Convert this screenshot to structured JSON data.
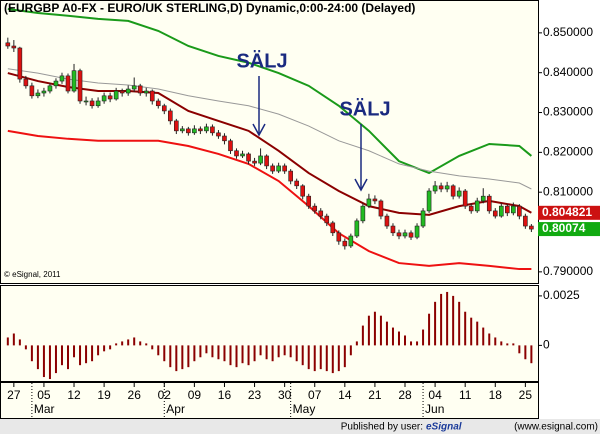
{
  "chart_data": [
    {
      "type": "candlestick",
      "title": "(EURGBP A0-FX - EURO/UK STERLING,D) Dynamic,0:00-24:00 (Delayed)",
      "copyright": "© eSignal, 2011",
      "annotations": [
        "SÄLJ",
        "SÄLJ"
      ],
      "x": [
        -1,
        0,
        1,
        2,
        3,
        4,
        5,
        6,
        7,
        8,
        9,
        10,
        11,
        12,
        13,
        14,
        15,
        16,
        17,
        18,
        19,
        20,
        21,
        22,
        23,
        24,
        25,
        26,
        27,
        28,
        29,
        30,
        31,
        32,
        33,
        34,
        35,
        36,
        37,
        38,
        39,
        40,
        41,
        42,
        43,
        44,
        45,
        46,
        47,
        48,
        49,
        50,
        51,
        52,
        53,
        54,
        55,
        56,
        57,
        58,
        59,
        60,
        61,
        62,
        63,
        64,
        65,
        66,
        67,
        68,
        69,
        70,
        71,
        72,
        73,
        74,
        75,
        76,
        77,
        78,
        79,
        80,
        81,
        82,
        83,
        84,
        85,
        86
      ],
      "open": [
        0.8475,
        0.8467,
        0.8462,
        0.8384,
        0.8367,
        0.8342,
        0.8349,
        0.8354,
        0.8367,
        0.8379,
        0.8392,
        0.8354,
        0.8405,
        0.8329,
        0.8329,
        0.8317,
        0.8329,
        0.8342,
        0.8334,
        0.8354,
        0.8349,
        0.8359,
        0.8367,
        0.8349,
        0.8354,
        0.8329,
        0.8317,
        0.8304,
        0.8279,
        0.8254,
        0.8259,
        0.8249,
        0.8259,
        0.8254,
        0.8264,
        0.8249,
        0.8241,
        0.8229,
        0.8204,
        0.8191,
        0.8196,
        0.8178,
        0.8173,
        0.8191,
        0.8166,
        0.8153,
        0.8166,
        0.8153,
        0.8128,
        0.8116,
        0.809,
        0.8065,
        0.8053,
        0.804,
        0.8023,
        0.7998,
        0.7977,
        0.7965,
        0.799,
        0.8028,
        0.8065,
        0.8083,
        0.8078,
        0.804,
        0.8015,
        0.7998,
        0.799,
        0.7998,
        0.7987,
        0.8015,
        0.8053,
        0.8103,
        0.8116,
        0.8108,
        0.8116,
        0.809,
        0.8103,
        0.8065,
        0.8053,
        0.8078,
        0.809,
        0.8053,
        0.804,
        0.8065,
        0.8048,
        0.8065,
        0.804,
        0.8015
      ],
      "high": [
        0.8488,
        0.8482,
        0.8465,
        0.8392,
        0.8375,
        0.8358,
        0.8362,
        0.8374,
        0.8386,
        0.84,
        0.8398,
        0.8422,
        0.841,
        0.834,
        0.8336,
        0.8338,
        0.835,
        0.835,
        0.8362,
        0.836,
        0.8368,
        0.8388,
        0.8372,
        0.8362,
        0.8358,
        0.8335,
        0.8322,
        0.831,
        0.8284,
        0.8266,
        0.8264,
        0.8268,
        0.8265,
        0.8272,
        0.827,
        0.8256,
        0.8248,
        0.8234,
        0.821,
        0.8204,
        0.82,
        0.8186,
        0.821,
        0.8195,
        0.8172,
        0.8174,
        0.8172,
        0.8158,
        0.8134,
        0.812,
        0.8096,
        0.8072,
        0.806,
        0.8046,
        0.8028,
        0.8004,
        0.7984,
        0.7996,
        0.8034,
        0.8072,
        0.8096,
        0.8092,
        0.8082,
        0.8046,
        0.8022,
        0.8006,
        0.8006,
        0.8004,
        0.8022,
        0.806,
        0.811,
        0.8128,
        0.8124,
        0.8126,
        0.812,
        0.8112,
        0.8108,
        0.8072,
        0.8086,
        0.811,
        0.8095,
        0.806,
        0.8072,
        0.807,
        0.8074,
        0.807,
        0.8046,
        0.802
      ],
      "low": [
        0.846,
        0.8452,
        0.8375,
        0.836,
        0.8335,
        0.8336,
        0.834,
        0.8348,
        0.836,
        0.8372,
        0.8348,
        0.835,
        0.8322,
        0.8318,
        0.831,
        0.8312,
        0.8322,
        0.8326,
        0.833,
        0.834,
        0.8342,
        0.8352,
        0.8342,
        0.834,
        0.832,
        0.831,
        0.8296,
        0.827,
        0.8246,
        0.8248,
        0.8242,
        0.8244,
        0.8246,
        0.8248,
        0.8242,
        0.8234,
        0.822,
        0.8196,
        0.8184,
        0.8186,
        0.817,
        0.8166,
        0.8168,
        0.8158,
        0.8146,
        0.8148,
        0.8146,
        0.812,
        0.8108,
        0.8082,
        0.8058,
        0.8046,
        0.8032,
        0.8015,
        0.799,
        0.7968,
        0.7956,
        0.796,
        0.7985,
        0.8022,
        0.806,
        0.807,
        0.8032,
        0.8008,
        0.799,
        0.7982,
        0.7984,
        0.798,
        0.7982,
        0.801,
        0.8048,
        0.8096,
        0.81,
        0.81,
        0.8082,
        0.8084,
        0.8058,
        0.8046,
        0.8048,
        0.8072,
        0.8046,
        0.8034,
        0.8036,
        0.804,
        0.8042,
        0.8032,
        0.8008,
        0.8
      ],
      "close": [
        0.8467,
        0.8462,
        0.8384,
        0.8367,
        0.8342,
        0.8349,
        0.8354,
        0.8367,
        0.8379,
        0.8392,
        0.8354,
        0.8405,
        0.8329,
        0.8329,
        0.8317,
        0.8329,
        0.8342,
        0.8334,
        0.8354,
        0.8349,
        0.8359,
        0.8367,
        0.8349,
        0.8354,
        0.8329,
        0.8317,
        0.8304,
        0.8279,
        0.8254,
        0.8259,
        0.8249,
        0.8259,
        0.8254,
        0.8264,
        0.8249,
        0.8241,
        0.8229,
        0.8204,
        0.8191,
        0.8196,
        0.8178,
        0.8173,
        0.8191,
        0.8166,
        0.8153,
        0.8166,
        0.8153,
        0.8128,
        0.8116,
        0.809,
        0.8065,
        0.8053,
        0.804,
        0.8023,
        0.7998,
        0.7977,
        0.7965,
        0.799,
        0.8028,
        0.8065,
        0.8083,
        0.8078,
        0.804,
        0.8015,
        0.7998,
        0.799,
        0.7998,
        0.7987,
        0.8015,
        0.8053,
        0.8103,
        0.8116,
        0.8108,
        0.8116,
        0.809,
        0.8103,
        0.8065,
        0.8053,
        0.8078,
        0.809,
        0.8053,
        0.804,
        0.8065,
        0.8048,
        0.8065,
        0.804,
        0.8015,
        0.80074
      ],
      "up_color": "#22bb22",
      "down_color": "#dd1111",
      "series": [
        {
          "color": "#1a9a1a",
          "x": [
            -1,
            4,
            9,
            14,
            19,
            24,
            29,
            34,
            39,
            44,
            49,
            54,
            59,
            64,
            69,
            74,
            79,
            84,
            86
          ],
          "values": [
            0.856,
            0.855,
            0.8543,
            0.8535,
            0.853,
            0.8505,
            0.8467,
            0.8442,
            0.8425,
            0.8399,
            0.8367,
            0.8317,
            0.8254,
            0.8178,
            0.8148,
            0.8191,
            0.8221,
            0.8216,
            0.8191
          ]
        },
        {
          "color": "#8b0000",
          "x": [
            -1,
            4,
            9,
            14,
            19,
            24,
            29,
            34,
            39,
            44,
            49,
            54,
            59,
            64,
            69,
            74,
            79,
            84,
            86
          ],
          "values": [
            0.8399,
            0.8379,
            0.8364,
            0.8354,
            0.8354,
            0.8349,
            0.8304,
            0.8279,
            0.8254,
            0.8204,
            0.8148,
            0.8103,
            0.8065,
            0.8048,
            0.8043,
            0.8065,
            0.8078,
            0.8065,
            0.804821
          ]
        },
        {
          "color": "#ee1111",
          "x": [
            -1,
            4,
            9,
            14,
            19,
            24,
            29,
            34,
            39,
            44,
            49,
            54,
            59,
            64,
            69,
            74,
            79,
            84,
            86
          ],
          "values": [
            0.8254,
            0.8241,
            0.8234,
            0.8229,
            0.8229,
            0.8229,
            0.8216,
            0.8196,
            0.8171,
            0.8128,
            0.8065,
            0.7997,
            0.7952,
            0.7922,
            0.7915,
            0.7922,
            0.7915,
            0.7907,
            0.7907
          ]
        },
        {
          "color": "#999999",
          "x": [
            -1,
            4,
            9,
            14,
            19,
            24,
            29,
            34,
            39,
            44,
            49,
            54,
            59,
            64,
            69,
            74,
            79,
            84,
            86
          ],
          "values": [
            0.841,
            0.8399,
            0.8384,
            0.8374,
            0.8369,
            0.8359,
            0.8342,
            0.8329,
            0.8317,
            0.8296,
            0.8266,
            0.8229,
            0.8204,
            0.8171,
            0.8153,
            0.8141,
            0.8133,
            0.8123,
            0.8108
          ]
        }
      ],
      "xlim": [
        -2.3,
        87.1
      ],
      "ylim": [
        0.7872,
        0.858
      ],
      "yticks": [
        {
          "value": 0.85,
          "label": "0.850000"
        },
        {
          "value": 0.84,
          "label": "0.840000"
        },
        {
          "value": 0.83,
          "label": "0.830000"
        },
        {
          "value": 0.82,
          "label": "0.820000"
        },
        {
          "value": 0.81,
          "label": "0.810000"
        },
        {
          "value": 0.79,
          "label": "0.790000"
        }
      ],
      "xticks": [
        {
          "value": 0,
          "label": "27"
        },
        {
          "value": 5,
          "label": "05"
        },
        {
          "value": 10,
          "label": "12"
        },
        {
          "value": 15,
          "label": "19"
        },
        {
          "value": 20,
          "label": "26"
        },
        {
          "value": 25,
          "label": "02"
        },
        {
          "value": 30,
          "label": "09"
        },
        {
          "value": 35,
          "label": "16"
        },
        {
          "value": 40,
          "label": "23"
        },
        {
          "value": 45,
          "label": "30"
        },
        {
          "value": 50,
          "label": "07"
        },
        {
          "value": 55,
          "label": "14"
        },
        {
          "value": 60,
          "label": "21"
        },
        {
          "value": 65,
          "label": "28"
        },
        {
          "value": 70,
          "label": "04"
        },
        {
          "value": 75,
          "label": "11"
        },
        {
          "value": 80,
          "label": "18"
        },
        {
          "value": 85,
          "label": "25"
        }
      ],
      "months": [
        {
          "value": 3,
          "label": "Mar"
        },
        {
          "value": 25,
          "label": "Apr"
        },
        {
          "value": 46,
          "label": "May"
        },
        {
          "value": 68,
          "label": "Jun"
        }
      ]
    },
    {
      "type": "bar",
      "color": "#8b0000",
      "x": [
        -1,
        0,
        1,
        2,
        3,
        4,
        5,
        6,
        7,
        8,
        9,
        10,
        11,
        12,
        13,
        14,
        15,
        16,
        17,
        18,
        19,
        20,
        21,
        22,
        23,
        24,
        25,
        26,
        27,
        28,
        29,
        30,
        31,
        32,
        33,
        34,
        35,
        36,
        37,
        38,
        39,
        40,
        41,
        42,
        43,
        44,
        45,
        46,
        47,
        48,
        49,
        50,
        51,
        52,
        53,
        54,
        55,
        56,
        57,
        58,
        59,
        60,
        61,
        62,
        63,
        64,
        65,
        66,
        67,
        68,
        69,
        70,
        71,
        72,
        73,
        74,
        75,
        76,
        77,
        78,
        79,
        80,
        81,
        82,
        83,
        84,
        85,
        86
      ],
      "values": [
        0.0004,
        0.0006,
        0.0003,
        -0.0002,
        -0.0008,
        -0.0012,
        -0.0016,
        -0.0017,
        -0.0014,
        -0.001,
        -0.0012,
        -0.0006,
        -0.001,
        -0.0009,
        -0.0008,
        -0.0005,
        -0.0003,
        -0.0002,
        0.0001,
        0.0002,
        0.0003,
        0.0004,
        0.0002,
        0.0001,
        -0.0002,
        -0.0005,
        -0.0008,
        -0.0011,
        -0.0013,
        -0.0012,
        -0.0011,
        -0.0008,
        -0.0006,
        -0.0004,
        -0.0006,
        -0.0007,
        -0.0008,
        -0.001,
        -0.0011,
        -0.0009,
        -0.001,
        -0.0008,
        -0.0005,
        -0.0007,
        -0.0008,
        -0.0006,
        -0.0005,
        -0.0006,
        -0.0008,
        -0.001,
        -0.0012,
        -0.0013,
        -0.0012,
        -0.0013,
        -0.0014,
        -0.0013,
        -0.0011,
        -0.0005,
        0.0002,
        0.001,
        0.0015,
        0.0017,
        0.0015,
        0.0012,
        0.0009,
        0.0007,
        0.0005,
        0.0002,
        0.0002,
        0.0008,
        0.0016,
        0.0022,
        0.0026,
        0.0027,
        0.0025,
        0.0022,
        0.0017,
        0.0014,
        0.0012,
        0.0009,
        0.0006,
        0.0004,
        0.0002,
        0.0001,
        0.0001,
        -0.0004,
        -0.0007,
        -0.0009
      ],
      "xlim": [
        -2.3,
        87.1
      ],
      "ylim": [
        -0.00185,
        0.003
      ],
      "yticks": [
        0.0025,
        0
      ]
    }
  ],
  "footer": {
    "published": "Published by user:",
    "brand": "eSignal",
    "url": "(www.esignal.com)"
  }
}
